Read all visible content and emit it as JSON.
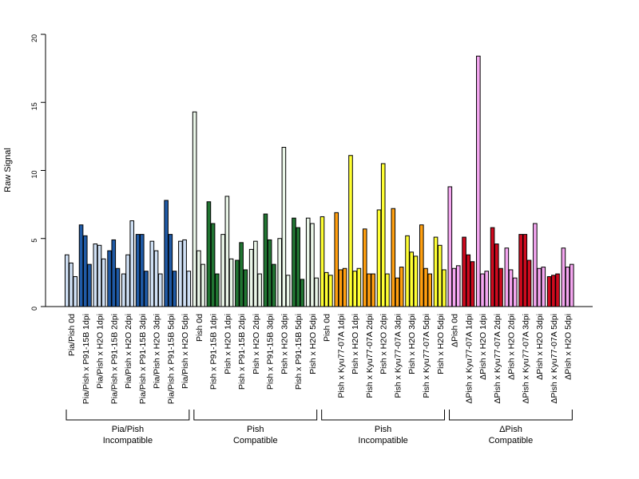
{
  "chart_data": {
    "type": "bar",
    "ylabel": "Raw Signal",
    "ylim": [
      0,
      20
    ],
    "yticks": [
      0,
      5,
      10,
      15,
      20
    ],
    "categories": [
      "Pia/Pish 0d",
      "Pia/Pish x P91-15B 1dpi",
      "Pia/Pish x H2O 1dpi",
      "Pia/Pish x P91-15B 2dpi",
      "Pia/Pish x H2O 2dpi",
      "Pia/Pish x P91-15B 3dpi",
      "Pia/Pish x H2O 3dpi",
      "Pia/Pish x P91-15B 5dpi",
      "Pia/Pish x H2O 5dpi",
      "Pish 0d",
      "Pish x P91-15B 1dpi",
      "Pish x H2O 1dpi",
      "Pish x P91-15B 2dpi",
      "Pish x H2O 2dpi",
      "Pish x P91-15B 3dpi",
      "Pish x H2O 3dpi",
      "Pish x P91-15B 5dpi",
      "Pish x H2O 5dpi",
      "Pish 0d",
      "Pish x Kyu77-07A 1dpi",
      "Pish x H2O 1dpi",
      "Pish x Kyu77-07A 2dpi",
      "Pish x H2O 2dpi",
      "Pish x Kyu77-07A 3dpi",
      "Pish x H2O 3dpi",
      "Pish x Kyu77-07A 5dpi",
      "Pish x H2O 5dpi",
      "ΔPish 0d",
      "ΔPish x Kyu77-07A 1dpi",
      "ΔPish x H2O 1dpi",
      "ΔPish x Kyu77-07A 2dpi",
      "ΔPish x H2O 2dpi",
      "ΔPish x Kyu77-07A 3dpi",
      "ΔPish x H2O 3dpi",
      "ΔPish x Kyu77-07A 5dpi",
      "ΔPish x H2O 5dpi"
    ],
    "values": [
      [
        3.8,
        3.2,
        2.2
      ],
      [
        6.0,
        5.2,
        3.1
      ],
      [
        4.6,
        4.5,
        3.5
      ],
      [
        4.1,
        4.9,
        2.8
      ],
      [
        2.4,
        3.8,
        6.3
      ],
      [
        5.3,
        5.3,
        2.6
      ],
      [
        4.8,
        4.1,
        2.4
      ],
      [
        7.8,
        5.3,
        2.6
      ],
      [
        4.8,
        4.9,
        2.6
      ],
      [
        14.3,
        4.1,
        3.1
      ],
      [
        7.7,
        6.1,
        2.4
      ],
      [
        5.3,
        8.1,
        3.5
      ],
      [
        3.4,
        4.7,
        2.7
      ],
      [
        4.2,
        4.8,
        2.4
      ],
      [
        6.8,
        4.9,
        3.1
      ],
      [
        5.0,
        11.7,
        2.3
      ],
      [
        6.5,
        5.8,
        2.0
      ],
      [
        6.5,
        6.1,
        2.1
      ],
      [
        6.6,
        2.5,
        2.3
      ],
      [
        6.9,
        2.7,
        2.8
      ],
      [
        11.1,
        2.6,
        2.8
      ],
      [
        5.7,
        2.4,
        2.4
      ],
      [
        7.1,
        10.5,
        2.4
      ],
      [
        7.2,
        2.1,
        2.9
      ],
      [
        5.2,
        4.0,
        3.7
      ],
      [
        6.0,
        2.8,
        2.4
      ],
      [
        5.1,
        4.5,
        2.7
      ],
      [
        8.8,
        2.8,
        3.0
      ],
      [
        5.1,
        3.8,
        3.3
      ],
      [
        18.4,
        2.4,
        2.6
      ],
      [
        5.8,
        4.6,
        2.8
      ],
      [
        4.3,
        2.7,
        2.1
      ],
      [
        5.3,
        5.3,
        3.4
      ],
      [
        6.1,
        2.8,
        2.9
      ],
      [
        2.2,
        2.3,
        2.4
      ],
      [
        4.3,
        2.9,
        3.1
      ]
    ],
    "bar_colors": [
      "#cfe0f5",
      "#1f5aa6",
      "#cfe0f5",
      "#1f5aa6",
      "#cfe0f5",
      "#1f5aa6",
      "#cfe0f5",
      "#1f5aa6",
      "#cfe0f5",
      "#eaf6e8",
      "#217532",
      "#eaf6e8",
      "#217532",
      "#eaf6e8",
      "#217532",
      "#eaf6e8",
      "#217532",
      "#eaf6e8",
      "#ffff33",
      "#ff9f10",
      "#ffff33",
      "#ff9f10",
      "#ffff33",
      "#ff9f10",
      "#ffff33",
      "#ff9f10",
      "#ffff33",
      "#f4a6f0",
      "#cf0a1e",
      "#f4a6f0",
      "#cf0a1e",
      "#f4a6f0",
      "#cf0a1e",
      "#f4a6f0",
      "#cf0a1e",
      "#f4a6f0"
    ],
    "groups": [
      {
        "line1": "Pia/Pish",
        "line2": "Incompatible",
        "start": 0,
        "end": 8
      },
      {
        "line1": "Pish",
        "line2": "Compatible",
        "start": 9,
        "end": 17
      },
      {
        "line1": "Pish",
        "line2": "Incompatible",
        "start": 18,
        "end": 26
      },
      {
        "line1": "ΔPish",
        "line2": "Compatible",
        "start": 27,
        "end": 35
      }
    ]
  }
}
